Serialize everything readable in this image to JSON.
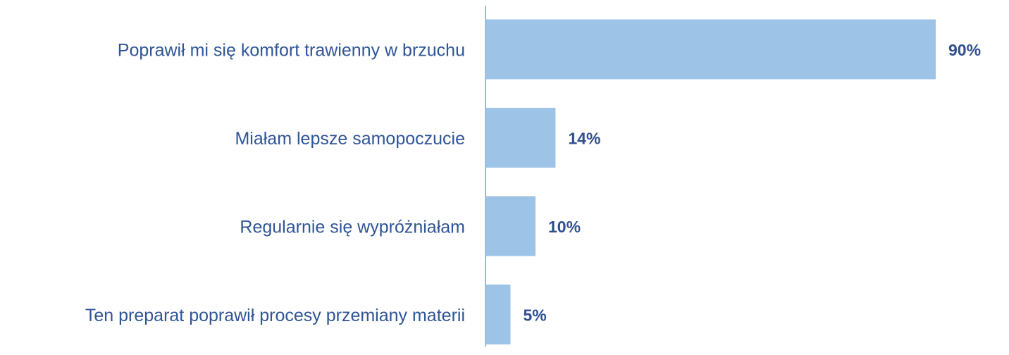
{
  "chart_data": {
    "type": "barh",
    "categories": [
      "Poprawił mi się komfort trawienny w brzuchu",
      "Miałam lepsze samopoczucie",
      "Regularnie się wypróżniałam",
      "Ten preparat poprawił procesy przemiany materii"
    ],
    "values": [
      90,
      14,
      10,
      5
    ],
    "value_labels": [
      "90%",
      "14%",
      "10%",
      "5%"
    ],
    "color": "#9dc3e6",
    "xlim": [
      0,
      100
    ]
  }
}
